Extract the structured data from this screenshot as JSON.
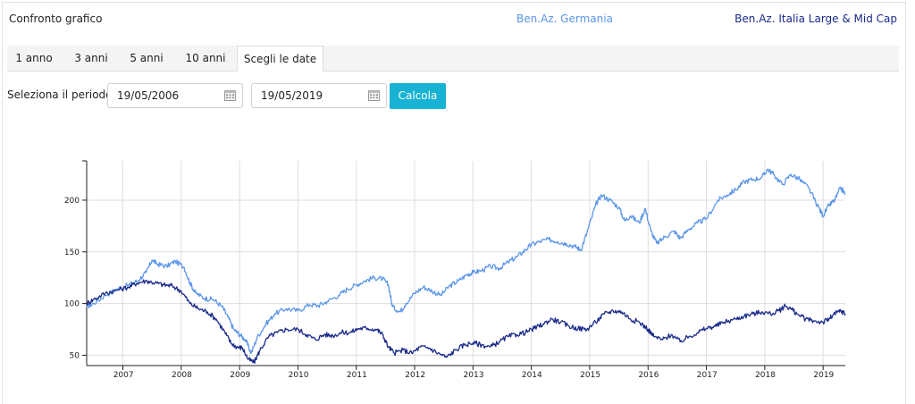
{
  "header": {
    "title": "Confronto grafico",
    "legend": [
      {
        "label": "Ben.Az. Germania",
        "color": "#5b95e8"
      },
      {
        "label": "Ben.Az. Italia Large & Mid Cap",
        "color": "#1a2a8a"
      }
    ]
  },
  "tabs": [
    {
      "label": "1 anno",
      "active": false
    },
    {
      "label": "3 anni",
      "active": false
    },
    {
      "label": "5 anni",
      "active": false
    },
    {
      "label": "10 anni",
      "active": false
    },
    {
      "label": "Scegli le date",
      "active": true
    }
  ],
  "period": {
    "label": "Seleziona il periodo:",
    "start_date": "19/05/2006",
    "end_date": "19/05/2019",
    "button_label": "Calcola",
    "button_color": "#17b3d5"
  },
  "chart_data": {
    "type": "line",
    "title": "",
    "xlabel": "",
    "ylabel": "",
    "x_ticks": [
      "2007",
      "2008",
      "2009",
      "2010",
      "2011",
      "2012",
      "2013",
      "2014",
      "2015",
      "2016",
      "2017",
      "2018",
      "2019"
    ],
    "x_range": [
      2006.38,
      2019.38
    ],
    "y_ticks": [
      50,
      100,
      150,
      200
    ],
    "ylim": [
      40,
      238
    ],
    "grid": true,
    "series": [
      {
        "name": "Ben.Az. Germania",
        "color": "#5b95e8",
        "points": [
          [
            2006.38,
            97
          ],
          [
            2006.5,
            100
          ],
          [
            2006.7,
            108
          ],
          [
            2006.9,
            114
          ],
          [
            2007.1,
            118
          ],
          [
            2007.25,
            122
          ],
          [
            2007.4,
            130
          ],
          [
            2007.5,
            142
          ],
          [
            2007.6,
            138
          ],
          [
            2007.75,
            136
          ],
          [
            2007.9,
            141
          ],
          [
            2008.05,
            135
          ],
          [
            2008.15,
            120
          ],
          [
            2008.25,
            110
          ],
          [
            2008.4,
            105
          ],
          [
            2008.55,
            104
          ],
          [
            2008.7,
            97
          ],
          [
            2008.8,
            87
          ],
          [
            2008.9,
            75
          ],
          [
            2009.0,
            70
          ],
          [
            2009.1,
            65
          ],
          [
            2009.2,
            52
          ],
          [
            2009.3,
            67
          ],
          [
            2009.45,
            80
          ],
          [
            2009.6,
            90
          ],
          [
            2009.8,
            95
          ],
          [
            2010.0,
            93
          ],
          [
            2010.2,
            99
          ],
          [
            2010.35,
            98
          ],
          [
            2010.5,
            102
          ],
          [
            2010.7,
            108
          ],
          [
            2010.85,
            114
          ],
          [
            2011.0,
            118
          ],
          [
            2011.15,
            122
          ],
          [
            2011.3,
            125
          ],
          [
            2011.45,
            124
          ],
          [
            2011.55,
            118
          ],
          [
            2011.62,
            97
          ],
          [
            2011.75,
            92
          ],
          [
            2011.85,
            100
          ],
          [
            2012.0,
            110
          ],
          [
            2012.15,
            116
          ],
          [
            2012.3,
            112
          ],
          [
            2012.45,
            108
          ],
          [
            2012.6,
            117
          ],
          [
            2012.75,
            122
          ],
          [
            2012.9,
            128
          ],
          [
            2013.0,
            130
          ],
          [
            2013.15,
            132
          ],
          [
            2013.3,
            136
          ],
          [
            2013.45,
            134
          ],
          [
            2013.6,
            140
          ],
          [
            2013.75,
            145
          ],
          [
            2013.9,
            152
          ],
          [
            2014.0,
            157
          ],
          [
            2014.15,
            160
          ],
          [
            2014.3,
            162
          ],
          [
            2014.45,
            160
          ],
          [
            2014.6,
            158
          ],
          [
            2014.75,
            155
          ],
          [
            2014.85,
            152
          ],
          [
            2014.95,
            168
          ],
          [
            2015.1,
            195
          ],
          [
            2015.2,
            205
          ],
          [
            2015.35,
            200
          ],
          [
            2015.5,
            193
          ],
          [
            2015.6,
            180
          ],
          [
            2015.7,
            185
          ],
          [
            2015.85,
            178
          ],
          [
            2015.95,
            192
          ],
          [
            2016.05,
            170
          ],
          [
            2016.15,
            158
          ],
          [
            2016.3,
            165
          ],
          [
            2016.45,
            170
          ],
          [
            2016.55,
            163
          ],
          [
            2016.7,
            172
          ],
          [
            2016.85,
            178
          ],
          [
            2017.0,
            182
          ],
          [
            2017.2,
            200
          ],
          [
            2017.35,
            205
          ],
          [
            2017.5,
            210
          ],
          [
            2017.65,
            218
          ],
          [
            2017.8,
            220
          ],
          [
            2017.95,
            222
          ],
          [
            2018.05,
            230
          ],
          [
            2018.15,
            225
          ],
          [
            2018.3,
            215
          ],
          [
            2018.45,
            225
          ],
          [
            2018.6,
            220
          ],
          [
            2018.75,
            212
          ],
          [
            2018.9,
            195
          ],
          [
            2019.0,
            185
          ],
          [
            2019.1,
            195
          ],
          [
            2019.2,
            200
          ],
          [
            2019.3,
            212
          ],
          [
            2019.38,
            206
          ]
        ]
      },
      {
        "name": "Ben.Az. Italia Large & Mid Cap",
        "color": "#1a2a8a",
        "points": [
          [
            2006.38,
            100
          ],
          [
            2006.5,
            104
          ],
          [
            2006.7,
            110
          ],
          [
            2006.9,
            113
          ],
          [
            2007.1,
            116
          ],
          [
            2007.25,
            120
          ],
          [
            2007.4,
            122
          ],
          [
            2007.55,
            120
          ],
          [
            2007.7,
            118
          ],
          [
            2007.85,
            117
          ],
          [
            2008.0,
            112
          ],
          [
            2008.15,
            100
          ],
          [
            2008.3,
            95
          ],
          [
            2008.45,
            92
          ],
          [
            2008.6,
            85
          ],
          [
            2008.75,
            72
          ],
          [
            2008.85,
            62
          ],
          [
            2008.95,
            58
          ],
          [
            2009.05,
            57
          ],
          [
            2009.15,
            46
          ],
          [
            2009.25,
            43
          ],
          [
            2009.35,
            55
          ],
          [
            2009.5,
            68
          ],
          [
            2009.65,
            72
          ],
          [
            2009.8,
            75
          ],
          [
            2010.0,
            75
          ],
          [
            2010.15,
            70
          ],
          [
            2010.3,
            65
          ],
          [
            2010.45,
            70
          ],
          [
            2010.6,
            69
          ],
          [
            2010.75,
            72
          ],
          [
            2010.9,
            72
          ],
          [
            2011.05,
            76
          ],
          [
            2011.2,
            76
          ],
          [
            2011.35,
            75
          ],
          [
            2011.45,
            70
          ],
          [
            2011.55,
            58
          ],
          [
            2011.65,
            52
          ],
          [
            2011.8,
            55
          ],
          [
            2011.95,
            52
          ],
          [
            2012.1,
            58
          ],
          [
            2012.25,
            57
          ],
          [
            2012.4,
            52
          ],
          [
            2012.55,
            48
          ],
          [
            2012.7,
            55
          ],
          [
            2012.85,
            60
          ],
          [
            2013.0,
            62
          ],
          [
            2013.15,
            60
          ],
          [
            2013.3,
            58
          ],
          [
            2013.45,
            63
          ],
          [
            2013.6,
            68
          ],
          [
            2013.75,
            70
          ],
          [
            2013.9,
            72
          ],
          [
            2014.05,
            76
          ],
          [
            2014.2,
            80
          ],
          [
            2014.35,
            85
          ],
          [
            2014.5,
            82
          ],
          [
            2014.65,
            78
          ],
          [
            2014.8,
            76
          ],
          [
            2014.95,
            75
          ],
          [
            2015.1,
            82
          ],
          [
            2015.25,
            90
          ],
          [
            2015.4,
            93
          ],
          [
            2015.55,
            92
          ],
          [
            2015.7,
            85
          ],
          [
            2015.85,
            82
          ],
          [
            2016.0,
            75
          ],
          [
            2016.1,
            68
          ],
          [
            2016.25,
            65
          ],
          [
            2016.4,
            70
          ],
          [
            2016.55,
            63
          ],
          [
            2016.7,
            68
          ],
          [
            2016.85,
            72
          ],
          [
            2017.0,
            76
          ],
          [
            2017.15,
            78
          ],
          [
            2017.3,
            82
          ],
          [
            2017.5,
            85
          ],
          [
            2017.65,
            88
          ],
          [
            2017.8,
            90
          ],
          [
            2017.95,
            92
          ],
          [
            2018.1,
            90
          ],
          [
            2018.25,
            93
          ],
          [
            2018.35,
            98
          ],
          [
            2018.45,
            95
          ],
          [
            2018.55,
            90
          ],
          [
            2018.7,
            85
          ],
          [
            2018.85,
            83
          ],
          [
            2019.0,
            82
          ],
          [
            2019.1,
            85
          ],
          [
            2019.2,
            90
          ],
          [
            2019.3,
            93
          ],
          [
            2019.38,
            90
          ]
        ]
      }
    ]
  }
}
